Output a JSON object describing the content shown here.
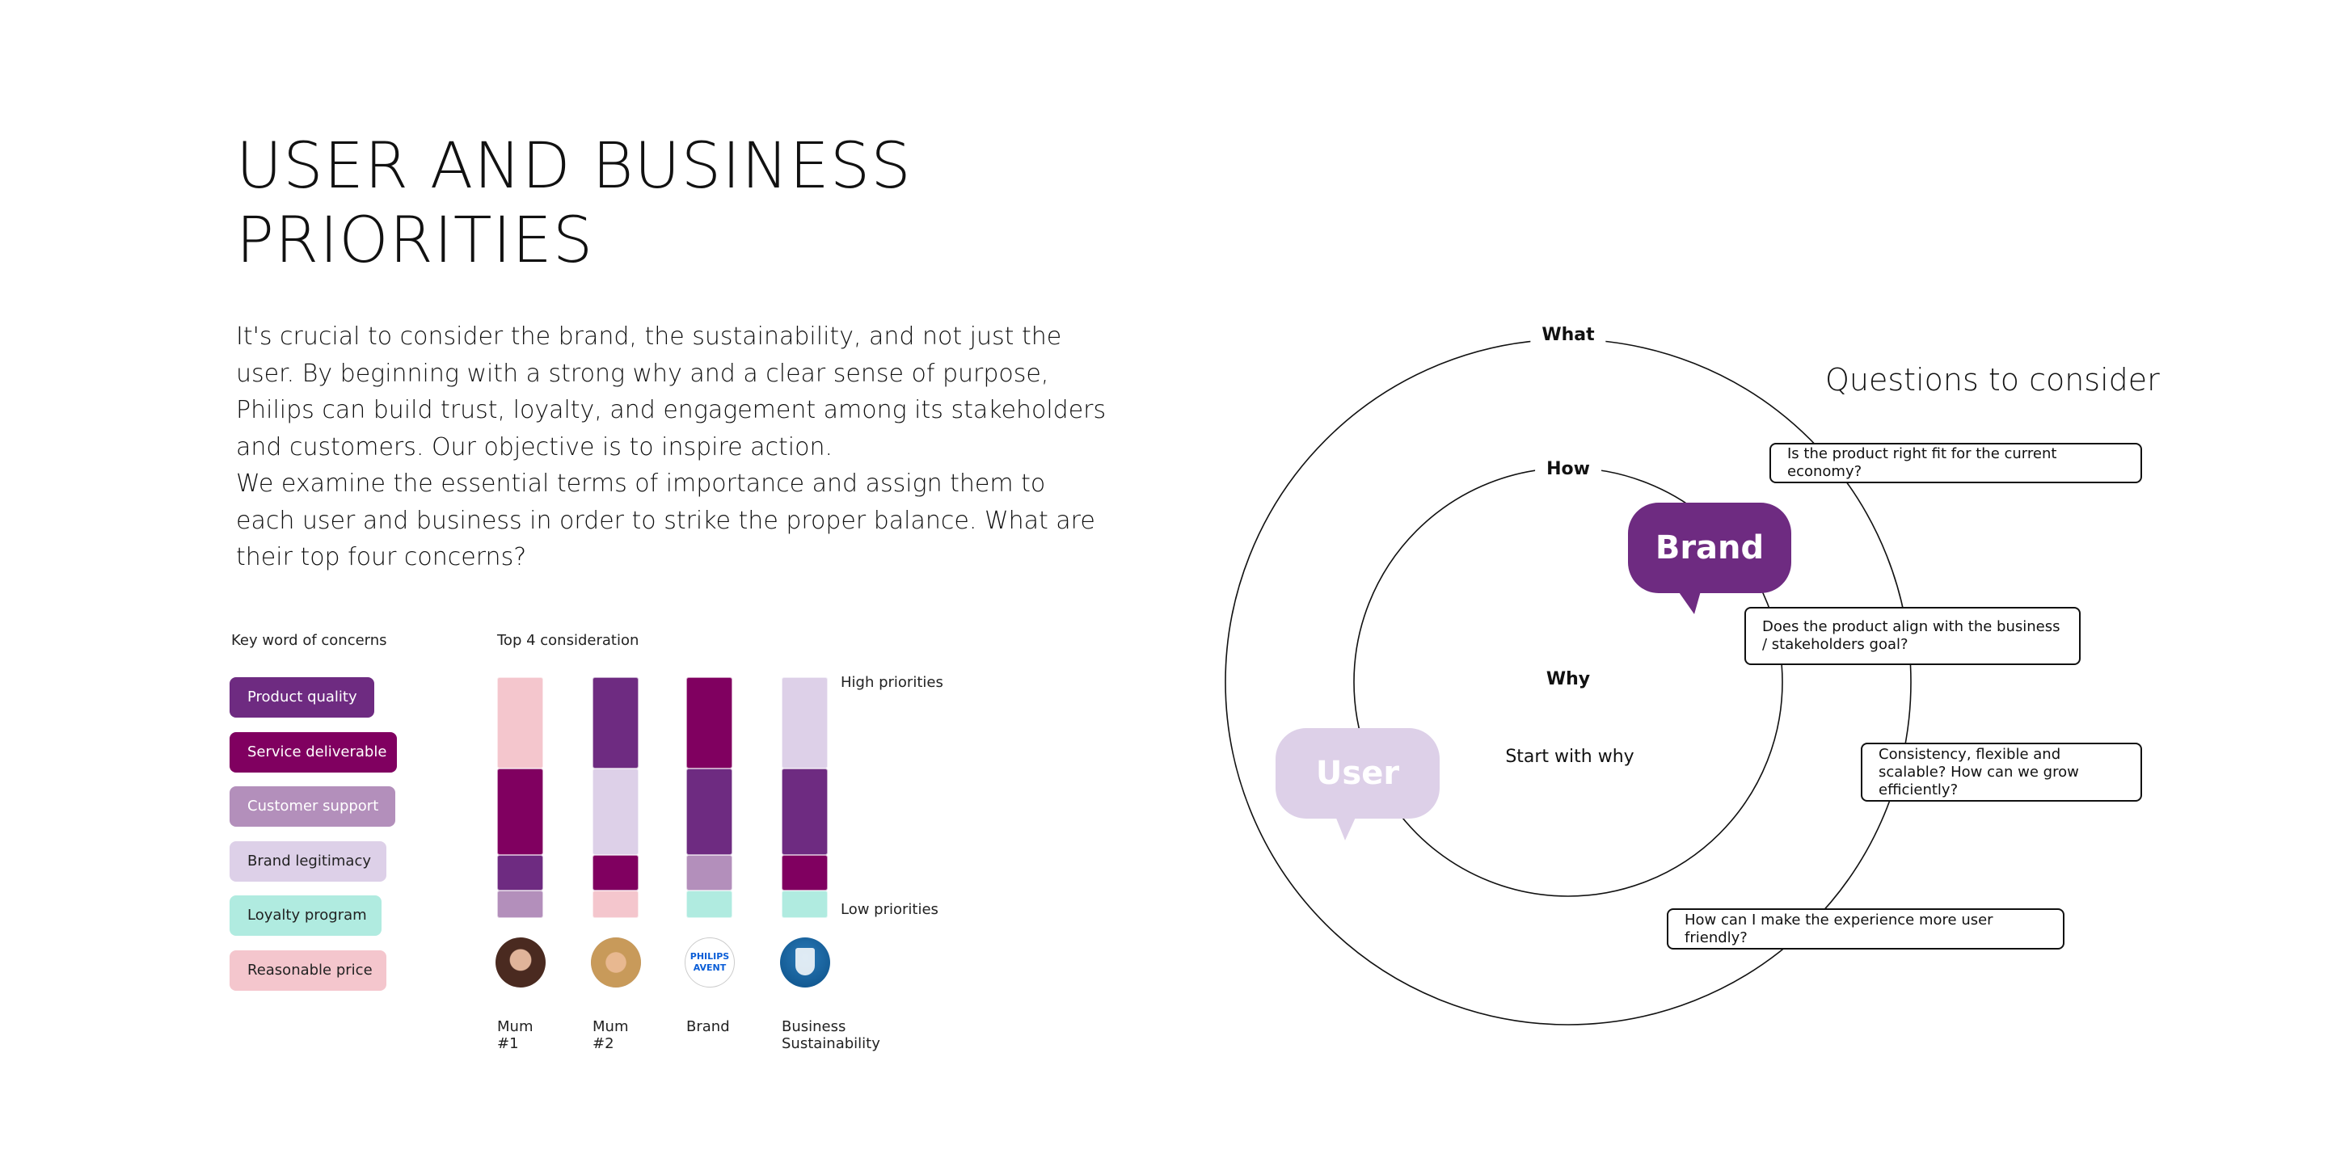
{
  "title": {
    "line1": "USER AND BUSINESS",
    "line2": "PRIORITIES"
  },
  "intro": "It's crucial to consider the brand, the sustainability, and not just the user. By beginning with a strong why and a clear sense of purpose, Philips can build trust, loyalty, and engagement among its stakeholders and customers. Our objective is to inspire action.\nWe examine the essential terms of importance and assign them to each user and business in order to strike the proper balance. What are their top four concerns?",
  "keywords": {
    "heading": "Key word of concerns",
    "items": [
      {
        "label": "Product quality",
        "color": "#6e2b81",
        "text_color": "#ffffff"
      },
      {
        "label": "Service deliverable",
        "color": "#800060",
        "text_color": "#ffffff"
      },
      {
        "label": "Customer support",
        "color": "#b38fbb",
        "text_color": "#ffffff"
      },
      {
        "label": "Brand legitimacy",
        "color": "#ddd0e8",
        "text_color": "#222222"
      },
      {
        "label": "Loyalty program",
        "color": "#b0ebe0",
        "text_color": "#222222"
      },
      {
        "label": "Reasonable price",
        "color": "#f4c6cd",
        "text_color": "#222222"
      }
    ]
  },
  "chart_data": {
    "type": "table",
    "title": "Top 4 consideration",
    "high_label": "High priorities",
    "low_label": "Low priorities",
    "columns": [
      {
        "label_1": "Mum",
        "label_2": "#1",
        "avatar": "photo-woman-1",
        "priorities": [
          "Reasonable price",
          "Service deliverable",
          "Product quality",
          "Customer support"
        ]
      },
      {
        "label_1": "Mum",
        "label_2": "#2",
        "avatar": "photo-woman-2",
        "priorities": [
          "Product quality",
          "Brand legitimacy",
          "Service deliverable",
          "Reasonable price"
        ]
      },
      {
        "label_1": "Brand",
        "label_2": "",
        "avatar": "philips-avent-logo",
        "priorities": [
          "Service deliverable",
          "Product quality",
          "Customer support",
          "Loyalty program"
        ]
      },
      {
        "label_1": "Business",
        "label_2": "Sustainability",
        "avatar": "philips-shield-logo",
        "priorities": [
          "Brand legitimacy",
          "Product quality",
          "Service deliverable",
          "Loyalty program"
        ]
      }
    ]
  },
  "logos": {
    "philips": "PHILIPS",
    "avent": "AVENT"
  },
  "circle": {
    "what": "What",
    "how": "How",
    "why": "Why",
    "start": "Start with why",
    "brand_bubble": "Brand",
    "user_bubble": "User",
    "brand_color": "#6e2b81",
    "user_color": "#ddd0e8"
  },
  "questions": {
    "heading": "Questions to consider",
    "items": [
      "Is the product right fit for the current economy?",
      "Does the product align with the business / stakeholders goal?",
      "Consistency, flexible and scalable? How can we grow efficiently?",
      "How can I make the experience more user friendly?"
    ]
  }
}
